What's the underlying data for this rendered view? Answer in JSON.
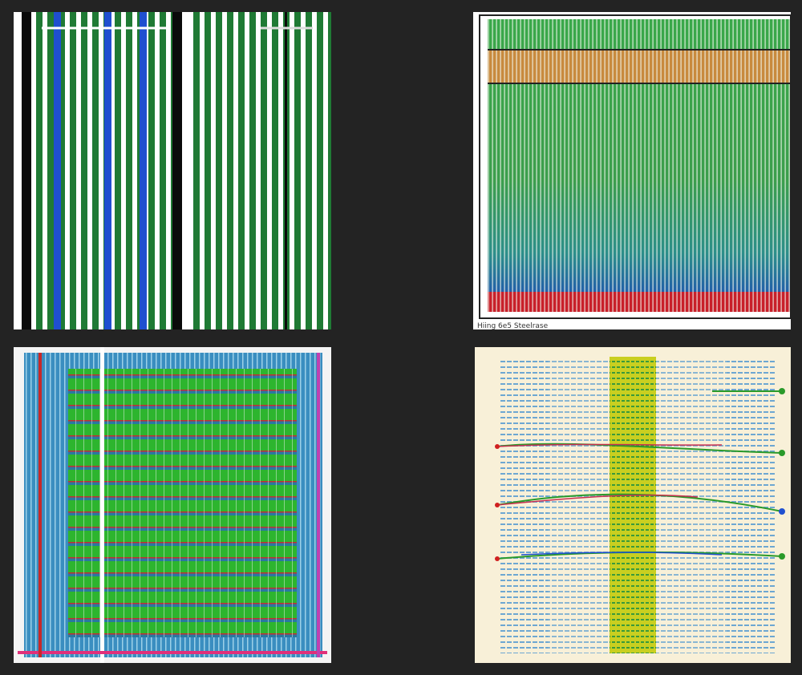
{
  "caption": "Hiing 6e5 Steelrase"
}
